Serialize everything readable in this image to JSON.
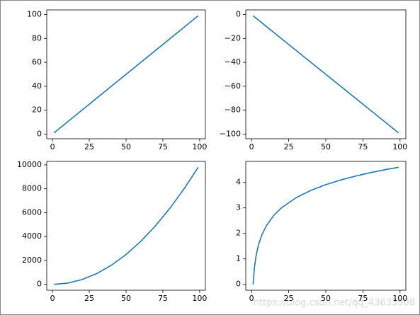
{
  "chart_data": [
    {
      "type": "line",
      "color": "#1f77b4",
      "x": [
        1,
        99
      ],
      "values": [
        1,
        99
      ],
      "xlim": [
        -3.9,
        103.9
      ],
      "ylim": [
        -3.9,
        103.9
      ],
      "xticks": [
        0,
        25,
        50,
        75,
        100
      ],
      "yticks": [
        0,
        20,
        40,
        60,
        80,
        100
      ]
    },
    {
      "type": "line",
      "color": "#1f77b4",
      "x": [
        1,
        99
      ],
      "values": [
        -1,
        -99
      ],
      "xlim": [
        -3.9,
        103.9
      ],
      "ylim": [
        -103.9,
        3.9
      ],
      "xticks": [
        0,
        25,
        50,
        75,
        100
      ],
      "yticks": [
        {
          "value": -100,
          "label": "−100"
        },
        {
          "value": -80,
          "label": "−80"
        },
        {
          "value": -60,
          "label": "−60"
        },
        {
          "value": -40,
          "label": "−40"
        },
        {
          "value": -20,
          "label": "−20"
        },
        0
      ]
    },
    {
      "type": "line",
      "color": "#1f77b4",
      "x": [
        1,
        10,
        20,
        30,
        40,
        50,
        60,
        70,
        80,
        90,
        99
      ],
      "values": [
        1,
        100,
        400,
        900,
        1600,
        2500,
        3600,
        4900,
        6400,
        8100,
        9801
      ],
      "xlim": [
        -3.9,
        103.9
      ],
      "ylim": [
        -489,
        10291
      ],
      "xticks": [
        0,
        25,
        50,
        75,
        100
      ],
      "yticks": [
        0,
        2000,
        4000,
        6000,
        8000,
        10000
      ]
    },
    {
      "type": "line",
      "color": "#1f77b4",
      "x": [
        1,
        2,
        3,
        4,
        5,
        7,
        10,
        15,
        20,
        30,
        40,
        50,
        60,
        70,
        80,
        90,
        99
      ],
      "values": [
        0,
        0.693,
        1.099,
        1.386,
        1.609,
        1.946,
        2.303,
        2.708,
        2.996,
        3.401,
        3.689,
        3.912,
        4.094,
        4.248,
        4.382,
        4.5,
        4.595
      ],
      "xlim": [
        -3.9,
        103.9
      ],
      "ylim": [
        -0.23,
        4.825
      ],
      "xticks": [
        0,
        25,
        50,
        75,
        100
      ],
      "yticks": [
        0,
        1,
        2,
        3,
        4
      ]
    }
  ],
  "watermark": "https://blog.csdn.net/qq_43633908"
}
